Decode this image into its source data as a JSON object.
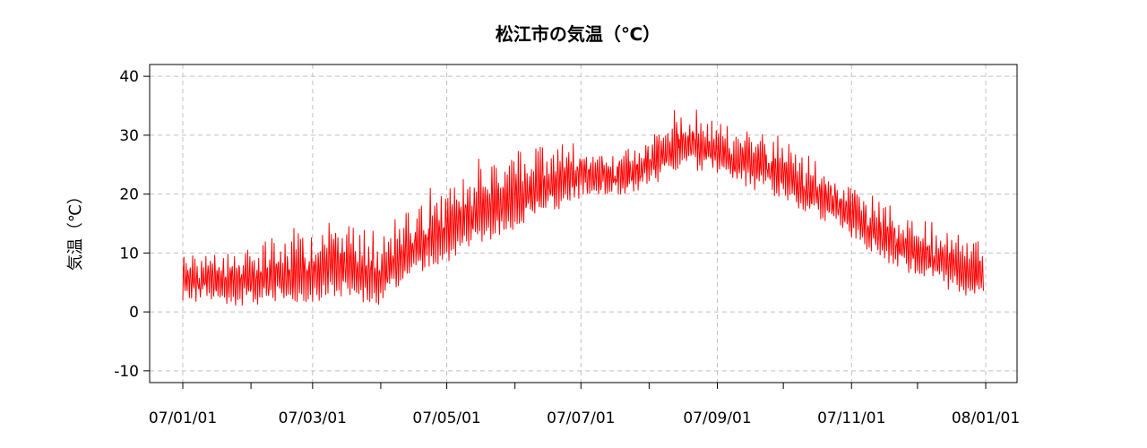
{
  "chart_data": {
    "type": "line",
    "title": "松江市の気温（℃）",
    "xlabel": "",
    "ylabel": "気温（℃）",
    "ylim": [
      -12,
      42
    ],
    "xlim": [
      "2007-01-01",
      "2008-01-01"
    ],
    "x_tick_labels": [
      "07/01/01",
      "07/03/01",
      "07/05/01",
      "07/07/01",
      "07/09/01",
      "07/11/01",
      "08/01/01"
    ],
    "x_tick_dates": [
      "2007-01-01",
      "2007-02-01",
      "2007-03-01",
      "2007-04-01",
      "2007-05-01",
      "2007-06-01",
      "2007-07-01",
      "2007-08-01",
      "2007-09-01",
      "2007-10-01",
      "2007-11-01",
      "2007-12-01",
      "2008-01-01"
    ],
    "x_tick_label_dates": [
      "2007-01-01",
      "2007-03-01",
      "2007-05-01",
      "2007-07-01",
      "2007-09-01",
      "2007-11-01",
      "2008-01-01"
    ],
    "y_ticks": [
      -10,
      0,
      10,
      20,
      30,
      40
    ],
    "grid": true,
    "series": [
      {
        "color": "#ff0000",
        "x": [
          "2007-01-01",
          "2007-01-10",
          "2007-01-20",
          "2007-01-31",
          "2007-02-10",
          "2007-02-20",
          "2007-03-01",
          "2007-03-10",
          "2007-03-20",
          "2007-03-31",
          "2007-04-10",
          "2007-04-20",
          "2007-04-30",
          "2007-05-10",
          "2007-05-20",
          "2007-05-31",
          "2007-06-10",
          "2007-06-20",
          "2007-06-30",
          "2007-07-10",
          "2007-07-20",
          "2007-07-31",
          "2007-08-10",
          "2007-08-20",
          "2007-08-31",
          "2007-09-10",
          "2007-09-20",
          "2007-09-30",
          "2007-10-10",
          "2007-10-20",
          "2007-10-31",
          "2007-11-10",
          "2007-11-20",
          "2007-11-30",
          "2007-12-10",
          "2007-12-20",
          "2007-12-31"
        ],
        "low": [
          1,
          2,
          1,
          1,
          1,
          1,
          1,
          2,
          1,
          0,
          4,
          6,
          7,
          10,
          11,
          13,
          16,
          17,
          19,
          20,
          20,
          21,
          23,
          24,
          23,
          22,
          20,
          19,
          17,
          15,
          12,
          10,
          7,
          6,
          4,
          3,
          1
        ],
        "high": [
          11,
          10,
          11,
          11,
          13,
          15,
          14,
          17,
          15,
          15,
          18,
          20,
          23,
          25,
          27,
          28,
          28,
          29,
          29,
          28,
          27,
          30,
          34,
          35,
          33,
          31,
          32,
          30,
          27,
          25,
          23,
          20,
          18,
          16,
          15,
          14,
          13
        ]
      }
    ]
  }
}
